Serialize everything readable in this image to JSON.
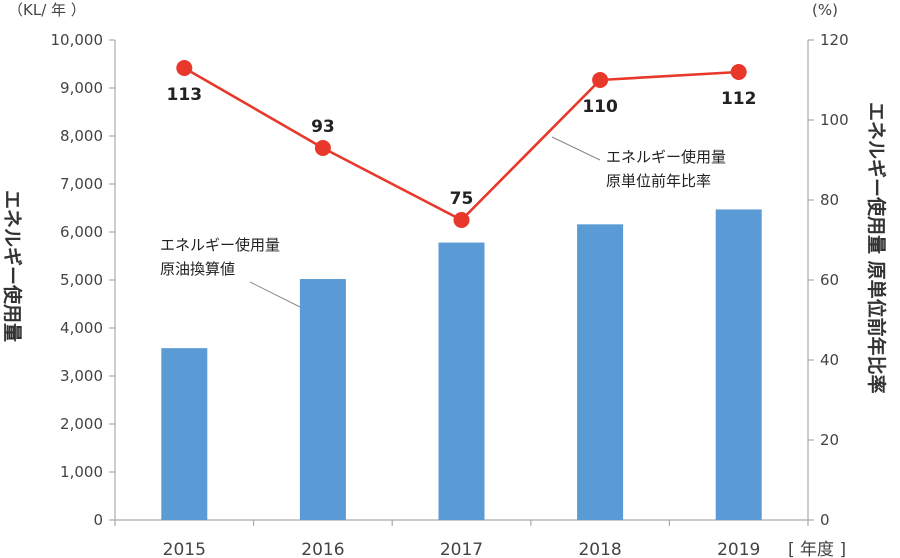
{
  "chart_data": {
    "type": "bar+line",
    "units": {
      "left": "（KL/ 年 ）",
      "right": "(%)",
      "x": "[ 年度 ]"
    },
    "categories": [
      "2015",
      "2016",
      "2017",
      "2018",
      "2019"
    ],
    "y_left": {
      "title": "エネルギー使用量",
      "range": [
        0,
        10000
      ],
      "ticks": [
        "0",
        "1,000",
        "2,000",
        "3,000",
        "4,000",
        "5,000",
        "6,000",
        "7,000",
        "8,000",
        "9,000",
        "10,000"
      ]
    },
    "y_right": {
      "title": "エネルギー使用量 原単位前年比率",
      "range": [
        0,
        120
      ],
      "ticks": [
        "0",
        "20",
        "40",
        "60",
        "80",
        "100",
        "120"
      ]
    },
    "series": [
      {
        "name": "エネルギー使用量 原油換算値",
        "label_lines": [
          "エネルギー使用量",
          "原油換算値"
        ],
        "type": "bar",
        "axis": "left",
        "color": "#5b9bd5",
        "values": [
          3580,
          5020,
          5780,
          6160,
          6470
        ]
      },
      {
        "name": "エネルギー使用量 原単位前年比率",
        "label_lines": [
          "エネルギー使用量",
          "原単位前年比率"
        ],
        "type": "line",
        "axis": "right",
        "color": "#e8382b",
        "values": [
          113,
          93,
          75,
          110,
          112
        ],
        "labels": [
          "113",
          "93",
          "75",
          "110",
          "112"
        ]
      }
    ],
    "grid": false,
    "legend": "none"
  }
}
